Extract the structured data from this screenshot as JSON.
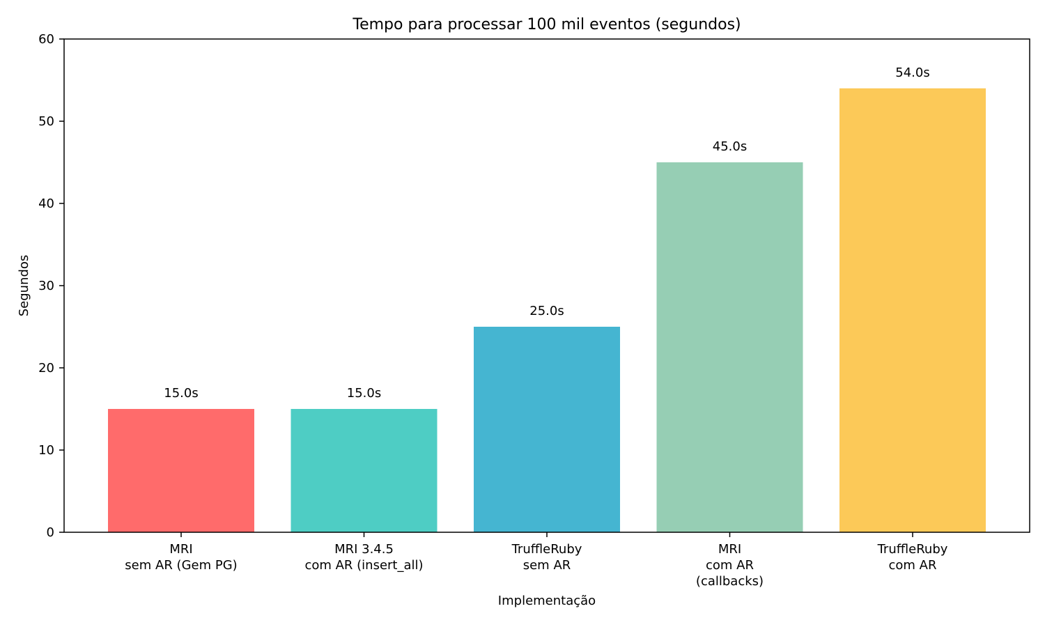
{
  "chart_data": {
    "type": "bar",
    "title": "Tempo para processar 100 mil eventos (segundos)",
    "xlabel": "Implementação",
    "ylabel": "Segundos",
    "ylim": [
      0,
      60
    ],
    "yticks": [
      0,
      10,
      20,
      30,
      40,
      50,
      60
    ],
    "grid": false,
    "categories": [
      [
        "MRI",
        "sem AR (Gem PG)"
      ],
      [
        "MRI 3.4.5",
        "com AR (insert_all)"
      ],
      [
        "TruffleRuby",
        "sem AR"
      ],
      [
        "MRI",
        "com AR",
        "(callbacks)"
      ],
      [
        "TruffleRuby",
        "com AR"
      ]
    ],
    "values": [
      15.0,
      15.0,
      25.0,
      45.0,
      54.0
    ],
    "value_labels": [
      "15.0s",
      "15.0s",
      "25.0s",
      "45.0s",
      "54.0s"
    ],
    "colors": [
      "#ff6b6b",
      "#4ecdc4",
      "#45b5d1",
      "#96ceb4",
      "#fcc958"
    ]
  }
}
